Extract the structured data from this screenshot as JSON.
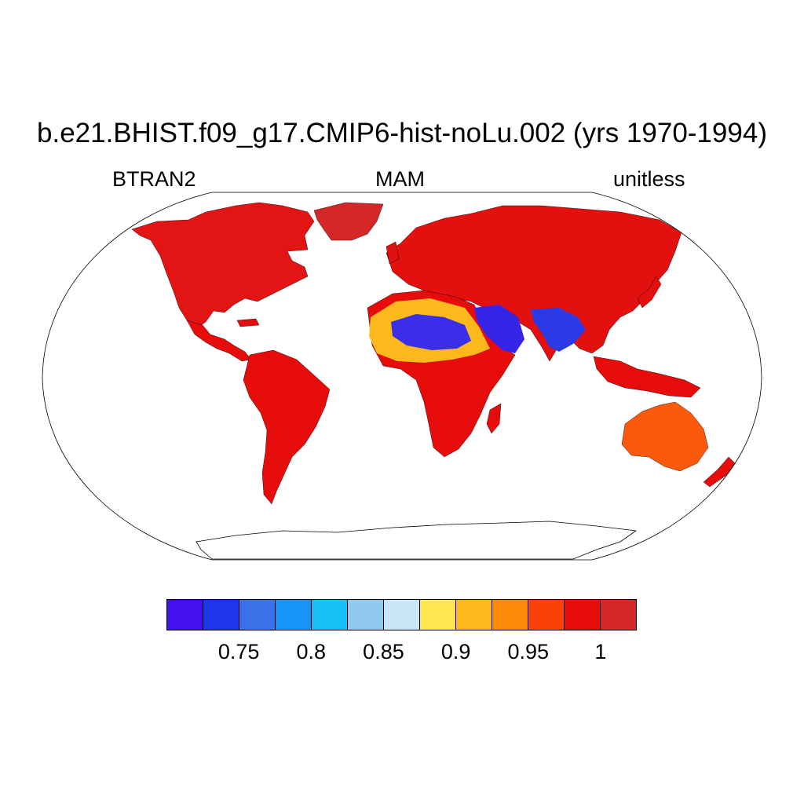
{
  "figure": {
    "title": "b.e21.BHIST.f09_g17.CMIP6-hist-noLu.002 (yrs 1970-1994)",
    "left_label": "BTRAN2",
    "center_label": "MAM",
    "right_label": "unitless"
  },
  "map": {
    "projection": "Robinson",
    "variable": "BTRAN2",
    "season": "MAM"
  },
  "colorbar": {
    "colors": [
      "#4410f0",
      "#1e36ea",
      "#3a70e8",
      "#1894f8",
      "#18c0f8",
      "#90caee",
      "#c8e6f8",
      "#fee650",
      "#fdb81c",
      "#fd8a06",
      "#fb4008",
      "#e60c0c",
      "#d42828"
    ],
    "tick_labels": [
      "0.75",
      "0.8",
      "0.85",
      "0.9",
      "0.95",
      "1"
    ],
    "ticks": [
      0.75,
      0.8,
      0.85,
      0.9,
      0.95,
      1.0
    ],
    "levels": [
      0.725,
      0.75,
      0.775,
      0.8,
      0.825,
      0.85,
      0.875,
      0.9,
      0.925,
      0.95,
      0.975,
      1.0
    ]
  },
  "regions": [
    {
      "name": "north-america",
      "fill": "#e31414"
    },
    {
      "name": "greenland",
      "fill": "#d42828"
    },
    {
      "name": "central-america",
      "fill": "#e60c0c"
    },
    {
      "name": "south-america",
      "fill": "#e60c0c"
    },
    {
      "name": "eurasia",
      "fill": "#e31010"
    },
    {
      "name": "africa",
      "fill": "#e60c0c"
    },
    {
      "name": "sahara",
      "fill": "#fdb81c"
    },
    {
      "name": "sahel-dry",
      "fill": "#3a2ee8"
    },
    {
      "name": "arabia",
      "fill": "#3525e6"
    },
    {
      "name": "india",
      "fill": "#2a3ae6"
    },
    {
      "name": "southeast-asia",
      "fill": "#e60c0c"
    },
    {
      "name": "australia",
      "fill": "#fb5a0c"
    },
    {
      "name": "madagascar",
      "fill": "#e60c0c"
    },
    {
      "name": "new-zealand",
      "fill": "#e60c0c"
    },
    {
      "name": "antarctica",
      "fill": "#ffffff"
    }
  ]
}
